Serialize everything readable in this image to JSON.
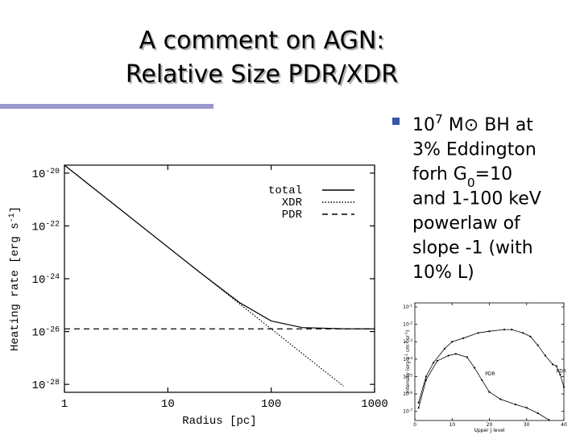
{
  "slide": {
    "title": [
      "A comment on AGN:",
      "Relative Size PDR/XDR"
    ],
    "bullet": [
      [
        "10",
        {
          "sup": "7"
        },
        " M⊙ BH at"
      ],
      [
        "3% Eddington"
      ],
      [
        "forh G",
        {
          "sub": "0"
        },
        "=10"
      ],
      [
        "and 1-100 keV"
      ],
      [
        "powerlaw of"
      ],
      [
        "slope -1 (with"
      ],
      [
        "10% L)"
      ]
    ]
  },
  "chart_data": [
    {
      "type": "line",
      "log_x": true,
      "log_y": true,
      "legend": "upper right",
      "x_label": "Radius [pc]",
      "y_label": [
        "Heating rate [erg s",
        {
          "sup": "-1"
        },
        "]"
      ],
      "x": [
        1,
        2,
        5,
        10,
        20,
        50,
        100,
        200,
        500,
        1000
      ],
      "series": [
        {
          "name": "total",
          "color": "#000000",
          "dash": "solid",
          "values": [
            2e-20,
            2.33e-21,
            1.36e-22,
            1.58e-23,
            1.85e-24,
            1.21e-25,
            2.52e-26,
            1.41e-26,
            1.27e-26,
            1.26e-26
          ]
        },
        {
          "name": "XDR",
          "color": "#000000",
          "dash": "dotted",
          "values": [
            2e-20,
            2.33e-21,
            1.36e-22,
            1.58e-23,
            1.85e-24,
            1.08e-25,
            1.26e-26,
            1.47e-27,
            8.6e-29,
            null
          ]
        },
        {
          "name": "PDR",
          "color": "#000000",
          "dash": "dashed",
          "values": [
            1.26e-26,
            1.26e-26,
            1.26e-26,
            1.26e-26,
            1.26e-26,
            1.26e-26,
            1.26e-26,
            1.26e-26,
            1.26e-26,
            1.26e-26
          ]
        }
      ],
      "xlim": [
        1,
        1000
      ],
      "xticks": [
        1,
        10,
        100,
        1000
      ],
      "ylim": [
        5e-29,
        2e-20
      ],
      "yticks": [
        {
          "value": 1e-20,
          "label": [
            "10",
            {
              "sup": "-20"
            }
          ]
        },
        {
          "value": 1e-22,
          "label": [
            "10",
            {
              "sup": "-22"
            }
          ]
        },
        {
          "value": 1e-24,
          "label": [
            "10",
            {
              "sup": "-24"
            }
          ]
        },
        {
          "value": 1e-26,
          "label": [
            "10",
            {
              "sup": "-26"
            }
          ]
        },
        {
          "value": 1e-28,
          "label": [
            "10",
            {
              "sup": "-28"
            }
          ]
        }
      ]
    },
    {
      "type": "line",
      "log_x": false,
      "log_y": true,
      "legend": "inline",
      "markers": true,
      "x_label": "Upper J level",
      "y_label": [
        "Intensity (erg s",
        {
          "sup": "-1"
        },
        " cm",
        {
          "sup": "-2"
        },
        " sr",
        {
          "sup": "-1"
        },
        ")"
      ],
      "series": [
        {
          "name": "XDR",
          "color": "#000000",
          "dash": "solid",
          "x": [
            1,
            3,
            5,
            8,
            10,
            13,
            17,
            20,
            24,
            26,
            29,
            31,
            33,
            35,
            37,
            38,
            39,
            40
          ],
          "values": [
            3.2e-07,
            1e-05,
            6.3e-05,
            0.0004,
            0.001,
            0.0016,
            0.0032,
            0.004,
            0.005,
            0.005,
            0.0032,
            0.002,
            0.00063,
            0.00016,
            5e-05,
            4e-05,
            1.3e-05,
            2.5e-06
          ]
        },
        {
          "name": "PDR",
          "color": "#000000",
          "dash": "solid",
          "x": [
            1,
            3,
            6,
            9,
            11,
            14,
            16,
            18,
            20,
            23,
            27,
            30,
            33,
            36
          ],
          "values": [
            1.6e-07,
            6.3e-06,
            7.9e-05,
            0.00016,
            0.0002,
            0.00013,
            3.2e-05,
            6.3e-06,
            1.3e-06,
            5e-07,
            2.5e-07,
            1.6e-07,
            7.9e-08,
            3.2e-08
          ]
        }
      ],
      "xlim": [
        0,
        40
      ],
      "xticks": [
        0,
        10,
        20,
        30,
        40
      ],
      "ylim": [
        3e-08,
        0.17
      ],
      "yticks": [
        {
          "value": 0.1,
          "label": [
            "10",
            {
              "sup": "-1"
            }
          ]
        },
        {
          "value": 0.01,
          "label": [
            "10",
            {
              "sup": "-2"
            }
          ]
        },
        {
          "value": 0.001,
          "label": [
            "10",
            {
              "sup": "-3"
            }
          ]
        },
        {
          "value": 0.0001,
          "label": [
            "10",
            {
              "sup": "-4"
            }
          ]
        },
        {
          "value": 1e-05,
          "label": [
            "10",
            {
              "sup": "-5"
            }
          ]
        },
        {
          "value": 1e-06,
          "label": [
            "10",
            {
              "sup": "-6"
            }
          ]
        },
        {
          "value": 1e-07,
          "label": [
            "10",
            {
              "sup": "-7"
            }
          ]
        }
      ]
    }
  ]
}
